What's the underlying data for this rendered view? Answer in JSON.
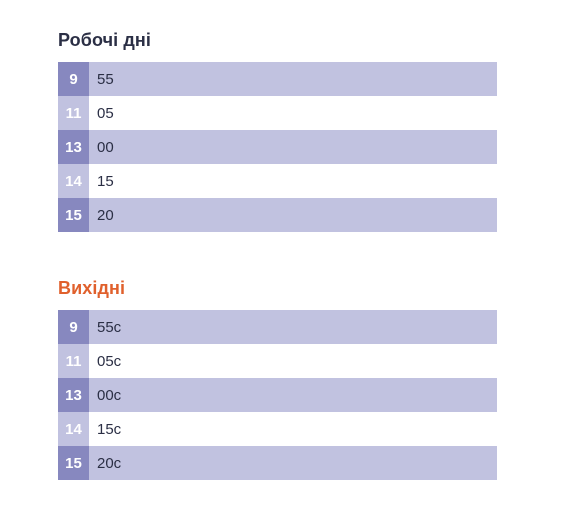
{
  "colors": {
    "title_dark": "#2b2f45",
    "title_accent": "#e0602c",
    "row_shaded": "#c1c2e0",
    "hour_shaded": "#8788bf",
    "hour_plain": "#c1c2e0"
  },
  "weekdays": {
    "title": "Робочі дні",
    "rows": [
      {
        "hour": "9",
        "minutes": "55"
      },
      {
        "hour": "11",
        "minutes": "05"
      },
      {
        "hour": "13",
        "minutes": "00"
      },
      {
        "hour": "14",
        "minutes": "15"
      },
      {
        "hour": "15",
        "minutes": "20"
      }
    ]
  },
  "weekends": {
    "title": "Вихідні",
    "rows": [
      {
        "hour": "9",
        "minutes": "55с"
      },
      {
        "hour": "11",
        "minutes": "05с"
      },
      {
        "hour": "13",
        "minutes": "00с"
      },
      {
        "hour": "14",
        "minutes": "15с"
      },
      {
        "hour": "15",
        "minutes": "20с"
      }
    ]
  }
}
